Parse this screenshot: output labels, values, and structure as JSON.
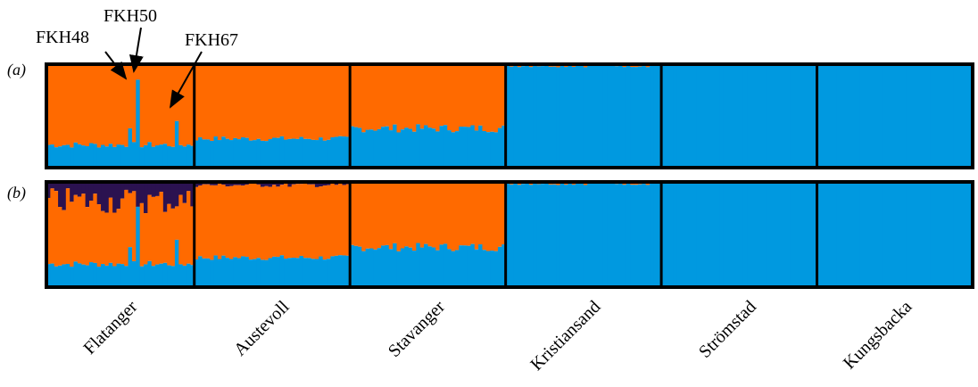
{
  "chart_data": {
    "type": "bar",
    "subtype": "stacked-100-percent",
    "ylim": [
      0,
      1
    ],
    "colors": {
      "blue": "#0099e0",
      "orange": "#ff6a00",
      "purple": "#2b1250",
      "frame": "#000000"
    },
    "populations": [
      {
        "name": "Flatanger",
        "label": "Flatanger",
        "n": 38,
        "blue_base": 0.22,
        "blue_jitter": 0.03
      },
      {
        "name": "Austevoll",
        "label": "Austevoll",
        "n": 40,
        "blue_base": 0.28,
        "blue_jitter": 0.025
      },
      {
        "name": "Stavanger",
        "label": "Stavanger",
        "n": 40,
        "blue_base": 0.38,
        "blue_jitter": 0.04
      },
      {
        "name": "Kristiansand",
        "label": "Kristiansand",
        "n": 40,
        "blue_base": 0.99,
        "blue_jitter": 0.02
      },
      {
        "name": "Strömstad",
        "label": "Strömstad",
        "n": 40,
        "blue_base": 1.0,
        "blue_jitter": 0.0
      },
      {
        "name": "Kungsbacka",
        "label": "Kungsbacka",
        "n": 40,
        "blue_base": 1.0,
        "blue_jitter": 0.0
      }
    ],
    "panels": [
      {
        "label": "(a)",
        "k": 2,
        "components": [
          "blue",
          "orange"
        ]
      },
      {
        "label": "(b)",
        "k": 3,
        "components": [
          "blue",
          "orange",
          "purple"
        ],
        "purple_by_population": [
          0.18,
          0.03,
          0.01,
          0.005,
          0.0,
          0.0
        ]
      }
    ],
    "highlighted_individuals": [
      {
        "id": "FKH48",
        "population": "Flatanger",
        "blue": 0.38
      },
      {
        "id": "FKH50",
        "population": "Flatanger",
        "blue": 0.85
      },
      {
        "id": "FKH67",
        "population": "Flatanger",
        "blue": 0.45
      }
    ],
    "annotations": [
      "FKH48",
      "FKH50",
      "FKH67"
    ]
  }
}
